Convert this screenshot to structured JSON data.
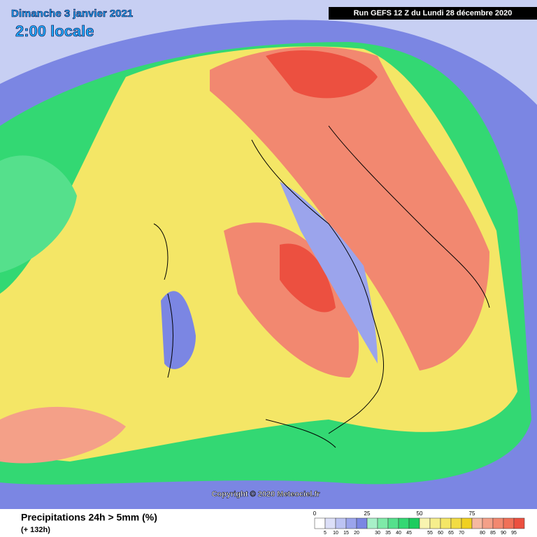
{
  "header": {
    "date": "Dimanche 3 janvier 2021",
    "time": "2:00 locale",
    "run": "Run GEFS 12 Z du Lundi 28 décembre 2020"
  },
  "copyright": "Copyright © 2020 Meteociel.fr",
  "footer": {
    "title": "Precipitations 24h > 5mm (%)",
    "lead": "(+ 132h)"
  },
  "legend": {
    "colors": [
      "#ffffff",
      "#dcdff8",
      "#bcc3f3",
      "#9ba4ec",
      "#7b86e3",
      "#a8f0c8",
      "#7eeaa8",
      "#55e08c",
      "#33d873",
      "#1ccc5e",
      "#f8f4b0",
      "#f6ee8c",
      "#f4e666",
      "#f2dc44",
      "#f0d020",
      "#f6b8a0",
      "#f4a088",
      "#f28870",
      "#f07058",
      "#ec5040"
    ],
    "top_labels": [
      0,
      25,
      50,
      75
    ],
    "bottom_labels": [
      5,
      10,
      15,
      20,
      30,
      35,
      40,
      45,
      55,
      60,
      65,
      70,
      80,
      85,
      90,
      95
    ]
  }
}
